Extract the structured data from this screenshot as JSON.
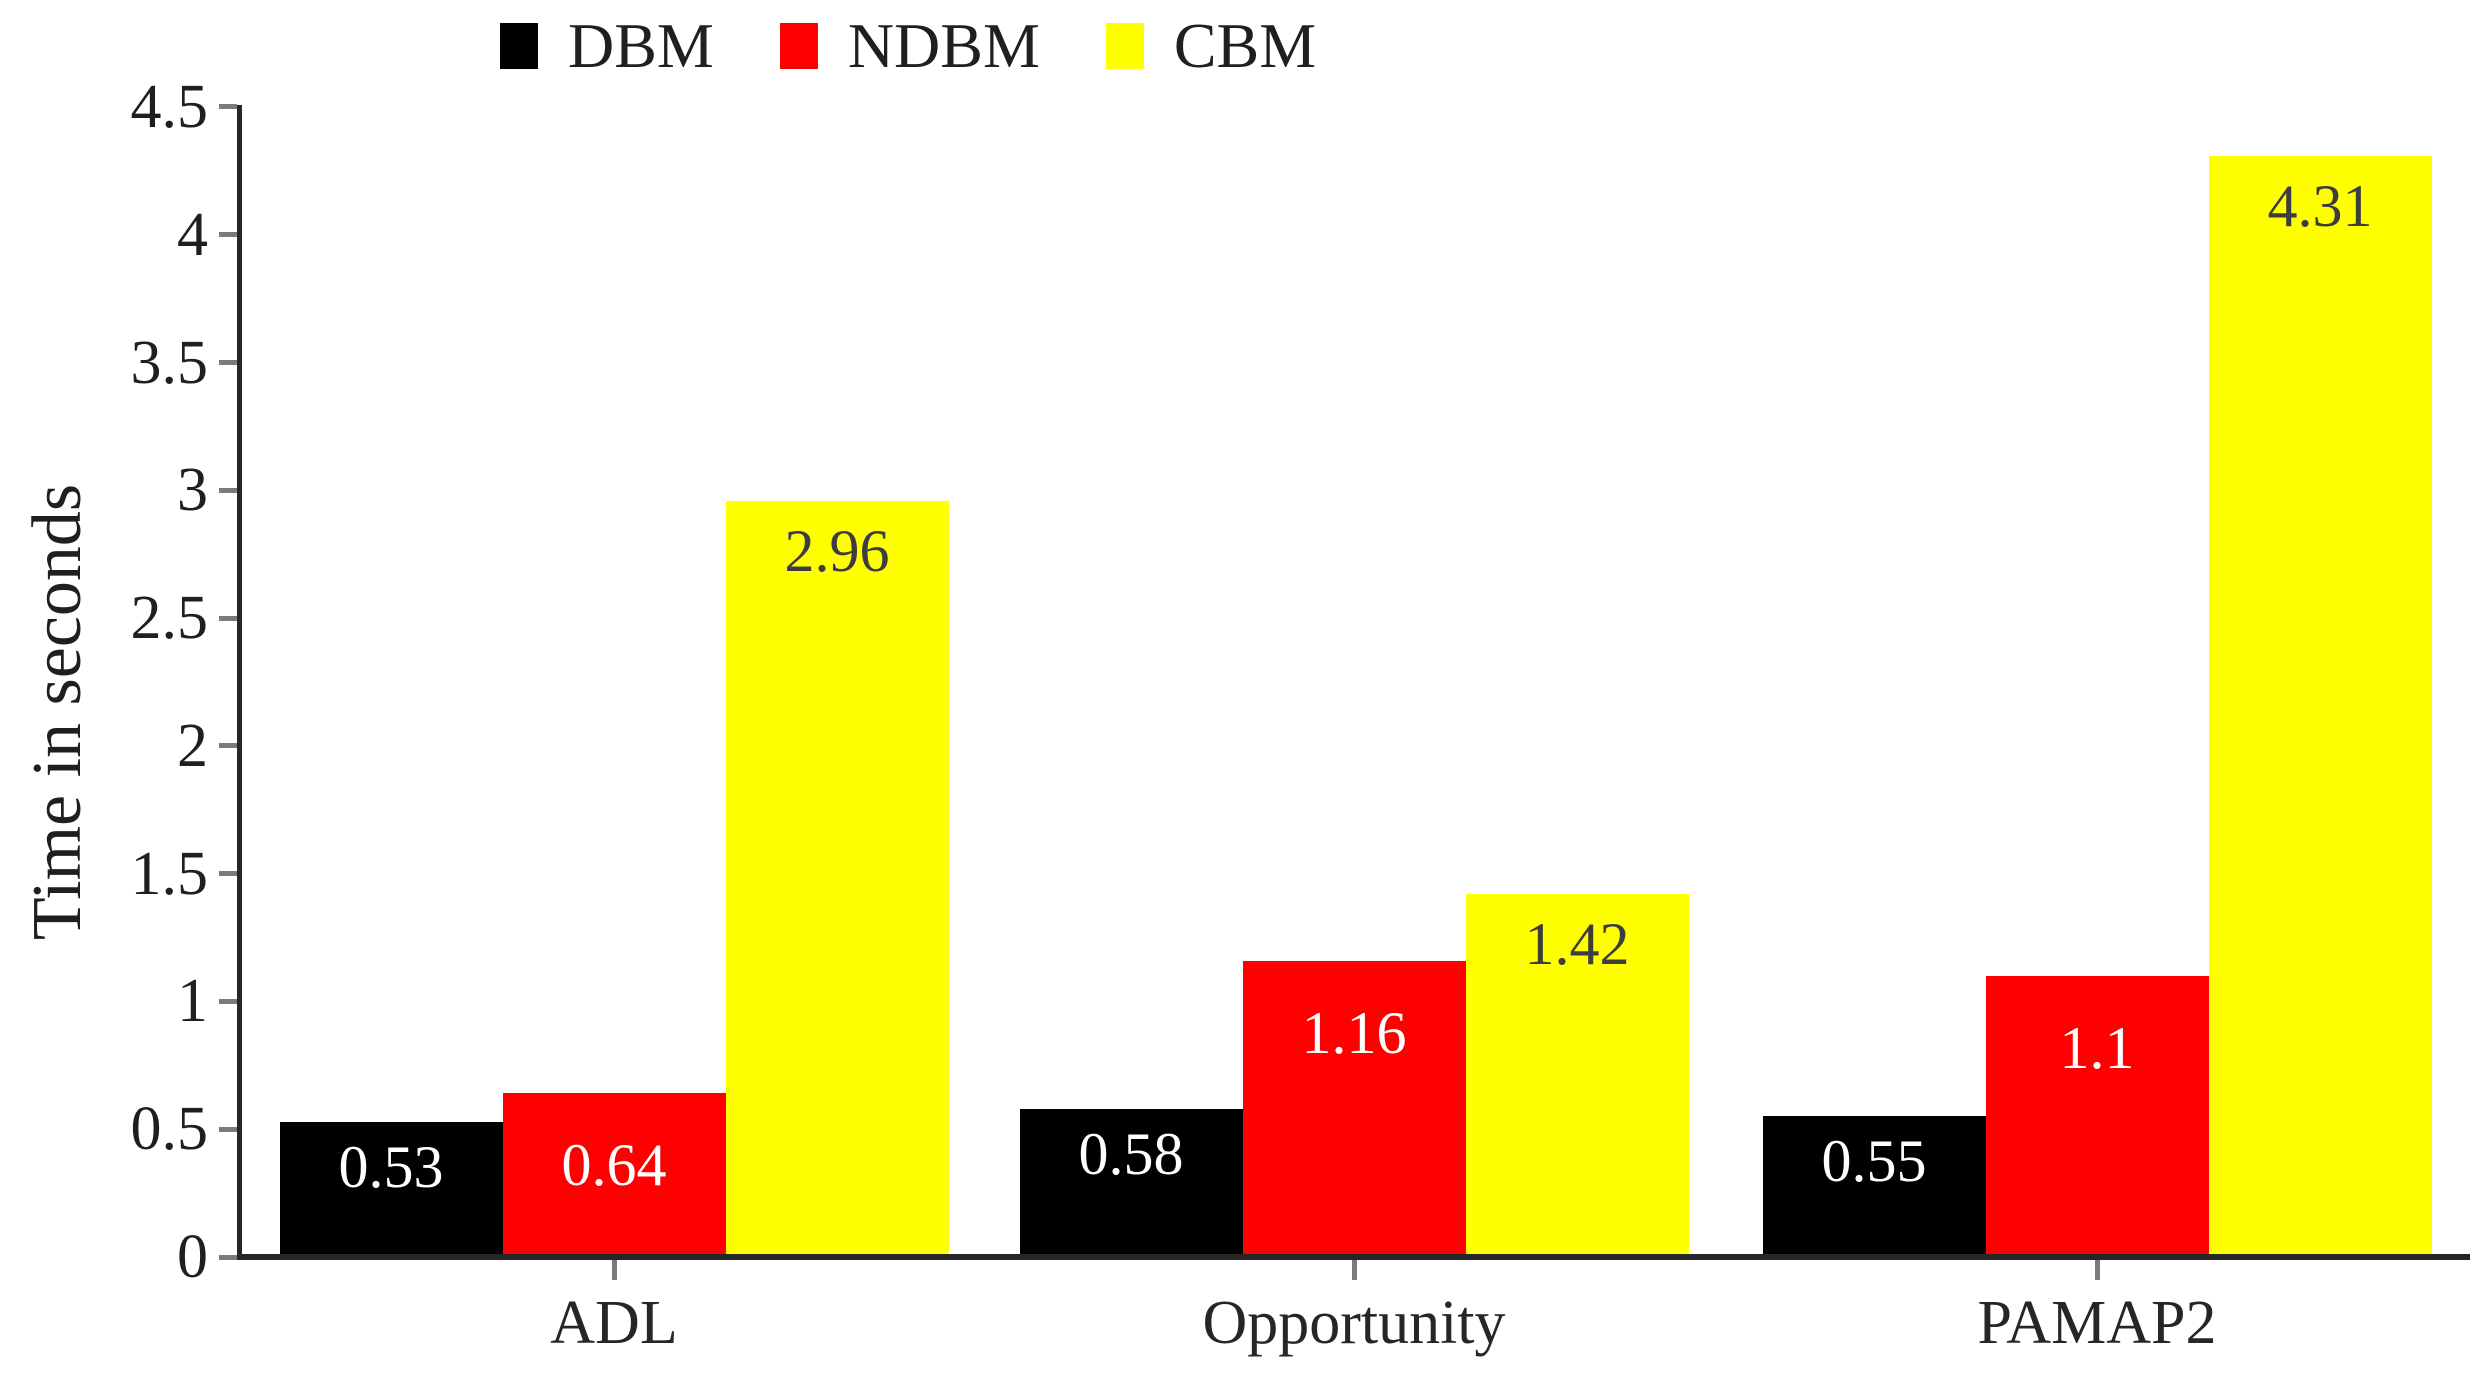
{
  "figure": {
    "background": "#ffffff"
  },
  "chart_data": {
    "type": "bar",
    "title": "",
    "categories": [
      "ADL",
      "Opportunity",
      "PAMAP2"
    ],
    "series": [
      {
        "name": "DBM",
        "color": "#000000",
        "label_color": "#ffffff",
        "values": [
          0.53,
          0.58,
          0.55
        ],
        "value_labels": [
          "0.53",
          "0.58",
          "0.55"
        ]
      },
      {
        "name": "NDBM",
        "color": "#ff0000",
        "label_color": "#ffffff",
        "values": [
          0.64,
          1.16,
          1.1
        ],
        "value_labels": [
          "0.64",
          "1.16",
          "1.1"
        ]
      },
      {
        "name": "CBM",
        "color": "#ffff00",
        "label_color": "#3d3d3d",
        "values": [
          2.96,
          1.42,
          4.31
        ],
        "value_labels": [
          "2.96",
          "1.42",
          "4.31"
        ]
      }
    ],
    "xlabel": "",
    "ylabel": "Time in seconds",
    "ylim": [
      0,
      4.5
    ],
    "ytick_step": 0.5,
    "ytick_labels": [
      "0",
      "0.5",
      "1",
      "1.5",
      "2",
      "2.5",
      "3",
      "3.5",
      "4",
      "4.5"
    ],
    "legend_position": "top-left",
    "grid": false,
    "axis_color": "#262626",
    "tick_color": "#7a7a7a"
  }
}
